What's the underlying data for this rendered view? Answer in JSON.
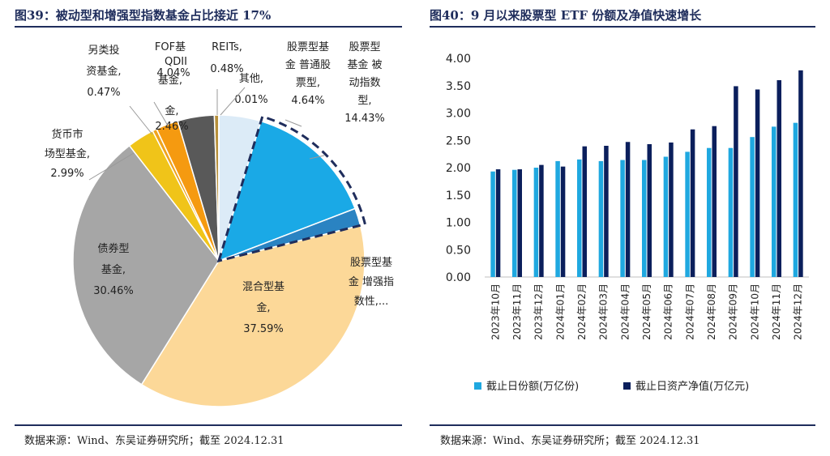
{
  "left": {
    "title": "图39：被动型和增强型指数基金占比接近 17%",
    "source": "数据来源：Wind、东吴证券研究所；截至 2024.12.31"
  },
  "right": {
    "title": "图40：9 月以来股票型 ETF 份额及净值快速增长",
    "source": "数据来源：Wind、东吴证券研究所；截至 2024.12.31"
  },
  "colors": {
    "title": "#1f2d5c",
    "bar_share": "#1fa8e0",
    "bar_nav": "#0b1f5c"
  },
  "chart_data": [
    {
      "type": "pie",
      "title": "",
      "slices": [
        {
          "name": "股票型基金 普通股票型",
          "value": 4.64,
          "color": "#dcebf7",
          "label_lines": [
            "股票型基",
            "金 普通股",
            "票型,",
            "4.64%"
          ]
        },
        {
          "name": "股票型基金 被动指数型",
          "value": 14.43,
          "color": "#1aa9e6",
          "label_lines": [
            "股票型",
            "基金 被",
            "动指数",
            "型,",
            "14.43%"
          ]
        },
        {
          "name": "股票型基金 增强指数型",
          "value": 1.92,
          "color": "#2a83c2",
          "label_lines": [
            "股票型基",
            "金 增强指",
            "数性,..."
          ]
        },
        {
          "name": "混合型基金",
          "value": 37.59,
          "color": "#fcd898",
          "label_lines": [
            "混合型基",
            "金,",
            "37.59%"
          ]
        },
        {
          "name": "债券型基金",
          "value": 30.46,
          "color": "#a6a6a6",
          "label_lines": [
            "债券型",
            "基金,",
            "30.46%"
          ]
        },
        {
          "name": "货币市场型基金",
          "value": 2.99,
          "color": "#f0c419",
          "label_lines": [
            "货币市",
            "场型基金,",
            "2.99%"
          ]
        },
        {
          "name": "另类投资基金",
          "value": 0.47,
          "color": "#efa41e",
          "label_lines": [
            "另类投",
            "资基金,",
            "0.47%"
          ]
        },
        {
          "name": "FOF基金",
          "value": 2.46,
          "color": "#f59a10",
          "label_lines": [
            "FOF基",
            "金,",
            "2.46%"
          ]
        },
        {
          "name": "QDII基金",
          "value": 4.04,
          "color": "#595959",
          "label_lines": [
            "QDII",
            "基金,",
            "4.04%"
          ]
        },
        {
          "name": "REITs",
          "value": 0.48,
          "color": "#b7903a",
          "label_lines": [
            "REITs,",
            "0.48%"
          ]
        },
        {
          "name": "其他",
          "value": 0.01,
          "color": "#bfbfbf",
          "label_lines": [
            "其他,",
            "0.01%"
          ]
        }
      ]
    },
    {
      "type": "bar",
      "title": "",
      "categories": [
        "2023年10月",
        "2023年11月",
        "2023年12月",
        "2024年01月",
        "2024年02月",
        "2024年03月",
        "2024年04月",
        "2024年05月",
        "2024年06月",
        "2024年07月",
        "2024年08月",
        "2024年09月",
        "2024年10月",
        "2024年11月",
        "2024年12月"
      ],
      "series": [
        {
          "name": "截止日份额(万亿份)",
          "values": [
            1.93,
            1.96,
            2.0,
            2.12,
            2.15,
            2.12,
            2.14,
            2.14,
            2.2,
            2.29,
            2.36,
            2.36,
            2.56,
            2.75,
            2.82
          ]
        },
        {
          "name": "截止日资产净值(万亿元)",
          "values": [
            1.97,
            1.97,
            2.05,
            2.02,
            2.39,
            2.4,
            2.47,
            2.43,
            2.46,
            2.7,
            2.76,
            3.49,
            3.43,
            3.6,
            3.78
          ]
        }
      ],
      "ylim": [
        0,
        4.0
      ],
      "yticks": [
        "0.00",
        "0.50",
        "1.00",
        "1.50",
        "2.00",
        "2.50",
        "3.00",
        "3.50",
        "4.00"
      ],
      "legend": "bottom"
    }
  ]
}
